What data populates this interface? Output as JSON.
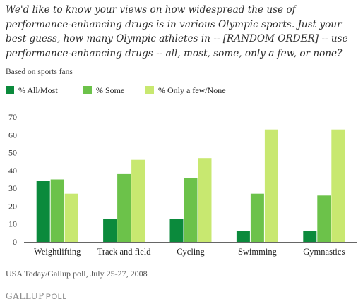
{
  "question": "We'd like to know your views on how widespread the use of performance-enhancing drugs is in various Olympic sports. Just your best guess, how many Olympic athletes in -- [RANDOM ORDER] -- use performance-enhancing drugs -- all, most, some, only a few, or none?",
  "subtitle": "Based on sports fans",
  "source": "USA Today/Gallup poll, July 25-27, 2008",
  "brand": {
    "main": "GALLUP",
    "suffix": "POLL"
  },
  "colors": {
    "all_most": "#0b8a3c",
    "some": "#6cc24a",
    "few_none": "#c8e870",
    "axis": "#555555",
    "text": "#222222"
  },
  "chart_data": {
    "type": "bar",
    "title": "",
    "xlabel": "",
    "ylabel": "",
    "ylim": [
      0,
      70
    ],
    "yticks": [
      0,
      10,
      20,
      30,
      40,
      50,
      60,
      70
    ],
    "grid": false,
    "legend": "top-left",
    "categories": [
      "Weightlifting",
      "Track and field",
      "Cycling",
      "Swimming",
      "Gymnastics"
    ],
    "series": [
      {
        "name": "% All/Most",
        "color": "#0b8a3c",
        "values": [
          34,
          13,
          13,
          6,
          6
        ]
      },
      {
        "name": "% Some",
        "color": "#6cc24a",
        "values": [
          35,
          38,
          36,
          27,
          26
        ]
      },
      {
        "name": "% Only a few/None",
        "color": "#c8e870",
        "values": [
          27,
          46,
          47,
          63,
          63
        ]
      }
    ]
  }
}
